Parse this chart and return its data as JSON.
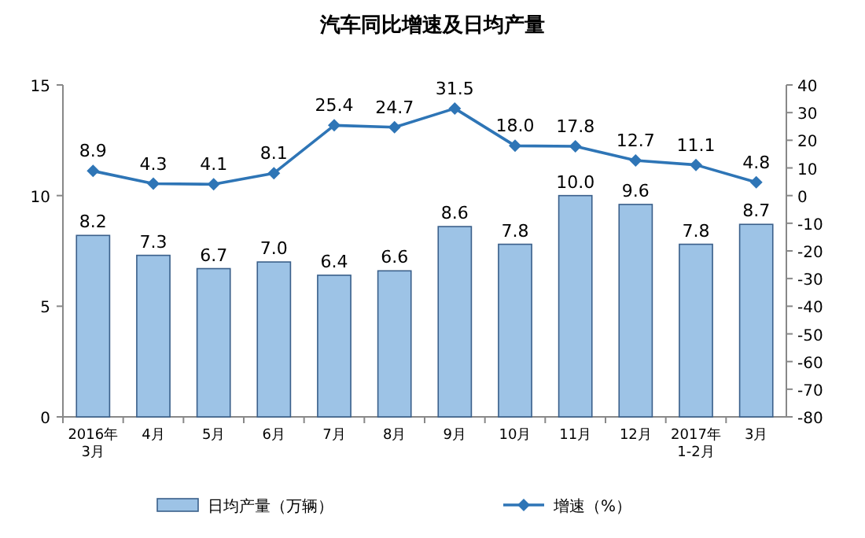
{
  "chart_data": {
    "type": "bar",
    "title": "汽车同比增速及日均产量",
    "categories": [
      "2016年\n3月",
      "4月",
      "5月",
      "6月",
      "7月",
      "8月",
      "9月",
      "10月",
      "11月",
      "12月",
      "2017年\n1-2月",
      "3月"
    ],
    "series": [
      {
        "name": "日均产量（万辆）",
        "color": "#9dc3e6",
        "values": [
          8.2,
          7.3,
          6.7,
          7.0,
          6.4,
          6.6,
          8.6,
          7.8,
          10.0,
          9.6,
          7.8,
          8.7
        ],
        "value_labels": [
          "8.2",
          "7.3",
          "6.7",
          "7.0",
          "6.4",
          "6.6",
          "8.6",
          "7.8",
          "10.0",
          "9.6",
          "7.8",
          "8.7"
        ]
      },
      {
        "name": "增速（%）",
        "type": "line",
        "axis": "y2",
        "color": "#2e75b6",
        "marker": "diamond",
        "values": [
          8.9,
          4.3,
          4.1,
          8.1,
          25.4,
          24.7,
          31.5,
          18.0,
          17.8,
          12.7,
          11.1,
          4.8
        ],
        "value_labels": [
          "8.9",
          "4.3",
          "4.1",
          "8.1",
          "25.4",
          "24.7",
          "31.5",
          "18.0",
          "17.8",
          "12.7",
          "11.1",
          "4.8"
        ]
      }
    ],
    "ylim": [
      0,
      15
    ],
    "yticks": [
      0,
      5,
      10,
      15
    ],
    "y2lim": [
      -80,
      40
    ],
    "y2ticks": [
      -80,
      -70,
      -60,
      -50,
      -40,
      -30,
      -20,
      -10,
      0,
      10,
      20,
      30,
      40
    ],
    "legend": "bottom",
    "grid": false
  }
}
